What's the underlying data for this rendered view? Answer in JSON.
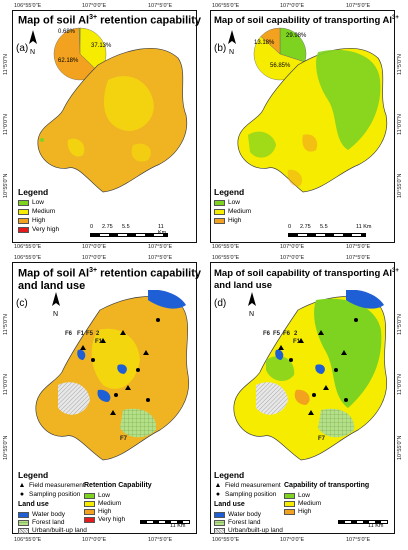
{
  "colors": {
    "low": "#7ed321",
    "medium": "#f5ec00",
    "high": "#f2a21e",
    "very_high": "#e41a1c",
    "water": "#1f5fd6",
    "forest": "#b5e08a",
    "urban": "#d9d9d9",
    "boundary": "#333333"
  },
  "ticks": {
    "top_x": [
      "106°55'0\"E",
      "107°0'0\"E",
      "107°5'0\"E"
    ],
    "left_y": [
      "11°5'0\"N",
      "11°0'0\"N",
      "10°55'0\"N"
    ],
    "bottom_x": [
      "106°55'0\"E",
      "107°0'0\"E",
      "107°5'0\"E"
    ],
    "right_y": [
      "11°5'0\"N",
      "11°0'0\"N",
      "10°55'0\"N"
    ]
  },
  "scale": {
    "labels": [
      "0",
      "2.75",
      "5.5",
      "11 Km"
    ]
  },
  "panel_a": {
    "letter": "(a)",
    "title_pre": "Map of soil Al",
    "title_sup": "3+",
    "title_post": " retention capability",
    "north": "N",
    "pie": {
      "slices": [
        {
          "label": "0.68%",
          "value": 0.68,
          "class": "low"
        },
        {
          "label": "37.13%",
          "value": 37.13,
          "class": "medium"
        },
        {
          "label": "62.18%",
          "value": 62.18,
          "class": "high"
        }
      ]
    },
    "legend": {
      "title": "Legend",
      "items": [
        {
          "label": "Low",
          "class": "low"
        },
        {
          "label": "Medium",
          "class": "medium"
        },
        {
          "label": "High",
          "class": "high"
        },
        {
          "label": "Very high",
          "class": "very_high"
        }
      ]
    }
  },
  "panel_b": {
    "letter": "(b)",
    "title_pre": "Map of soil capability of transporting Al",
    "title_sup": "3+",
    "north": "N",
    "pie": {
      "slices": [
        {
          "label": "29.98%",
          "value": 29.98,
          "class": "low"
        },
        {
          "label": "56.85%",
          "value": 56.85,
          "class": "medium"
        },
        {
          "label": "13.18%",
          "value": 13.18,
          "class": "high"
        }
      ]
    },
    "legend": {
      "title": "Legend",
      "items": [
        {
          "label": "Low",
          "class": "low"
        },
        {
          "label": "Medium",
          "class": "medium"
        },
        {
          "label": "High",
          "class": "high"
        }
      ]
    }
  },
  "panel_c": {
    "letter": "(c)",
    "title_line1_pre": "Map of soil Al",
    "title_sup": "3+",
    "title_line1_post": " retention capability",
    "title_line2": "and land use",
    "north": "N",
    "sites": [
      "F6",
      "F1",
      "F5",
      "2",
      "F1",
      "F7"
    ],
    "legend": {
      "title": "Legend",
      "field": "Field measurement",
      "sampling": "Sampling position",
      "landuse_title": "Land use",
      "landuse": [
        {
          "label": "Water body",
          "class": "water"
        },
        {
          "label": "Forest land",
          "class": "forest"
        },
        {
          "label": "Urban/built-up land",
          "class": "urban"
        }
      ],
      "cap_title": "Retention Capability",
      "caps": [
        {
          "label": "Low",
          "class": "low"
        },
        {
          "label": "Medium",
          "class": "medium"
        },
        {
          "label": "High",
          "class": "high"
        },
        {
          "label": "Very high",
          "class": "very_high"
        }
      ]
    }
  },
  "panel_d": {
    "letter": "(d)",
    "title_line1_pre": "Map of soil capability of transporting Al",
    "title_sup": "3+",
    "title_line2": "and land use",
    "north": "N",
    "sites": [
      "F6",
      "F5",
      "F6",
      "2",
      "F1",
      "F7"
    ],
    "legend": {
      "title": "Legend",
      "field": "Field measurement",
      "sampling": "Sampling position",
      "landuse_title": "Land use",
      "landuse": [
        {
          "label": "Water body",
          "class": "water"
        },
        {
          "label": "Forest land",
          "class": "forest"
        },
        {
          "label": "Urban/built-up land",
          "class": "urban"
        }
      ],
      "cap_title": "Capability of transporting",
      "caps": [
        {
          "label": "Low",
          "class": "low"
        },
        {
          "label": "Medium",
          "class": "medium"
        },
        {
          "label": "High",
          "class": "high"
        }
      ]
    }
  }
}
